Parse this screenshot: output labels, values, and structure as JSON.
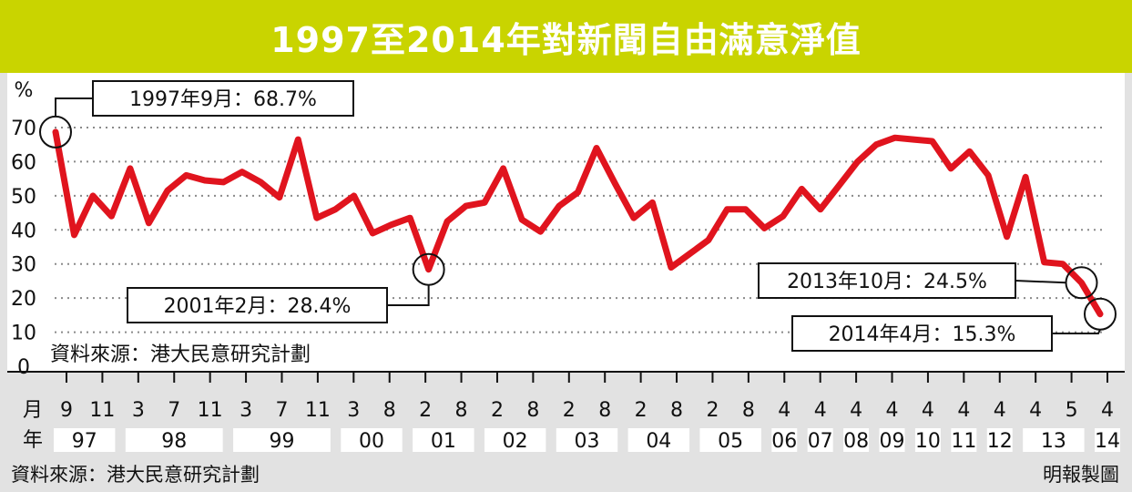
{
  "title": "1997至2014年對新聞自由滿意淨值",
  "source": "資料來源：港大民意研究計劃",
  "credit": "明報製圖",
  "colors": {
    "accent": "#c9d400",
    "line": "#e0141e"
  },
  "chart_data": {
    "type": "line",
    "title": "1997至2014年對新聞自由滿意淨值",
    "ylabel": "%",
    "xlabel": "",
    "ylim": [
      0,
      70
    ],
    "yticks": [
      "0",
      "10",
      "20",
      "30",
      "40",
      "50",
      "60",
      "70"
    ],
    "grid": "horizontal dotted",
    "month_row_label": "月",
    "year_row_label": "年",
    "month_ticks": [
      "9",
      "11",
      "3",
      "7",
      "11",
      "3",
      "7",
      "11",
      "3",
      "8",
      "2",
      "8",
      "2",
      "8",
      "2",
      "8",
      "2",
      "8",
      "2",
      "8",
      "4",
      "4",
      "4",
      "4",
      "4",
      "4",
      "4",
      "4",
      "5",
      "4"
    ],
    "year_groups": [
      "97",
      "98",
      "99",
      "00",
      "01",
      "02",
      "03",
      "04",
      "05",
      "06",
      "07",
      "08",
      "09",
      "10",
      "11",
      "12",
      "13",
      "14"
    ],
    "series": [
      {
        "values": [
          68.7,
          38.5,
          50,
          44,
          58,
          42,
          51.5,
          56,
          54.5,
          54,
          57,
          54,
          49.5,
          66.5,
          43.5,
          46,
          50,
          39,
          41.5,
          43.5,
          28.4,
          42.5,
          47,
          48,
          58,
          43,
          39.5,
          47,
          51,
          64,
          53.5,
          43.5,
          48,
          29,
          33,
          37,
          46,
          46,
          40.5,
          44,
          52,
          46,
          53,
          60,
          65,
          67,
          66.5,
          66,
          58,
          63,
          56,
          38,
          55.5,
          30.5,
          30,
          24.5,
          15.3
        ]
      }
    ],
    "annotations": [
      {
        "label": "1997年9月：68.7%",
        "date": "1997-09",
        "value": 68.7
      },
      {
        "label": "2001年2月：28.4%",
        "date": "2001-02",
        "value": 28.4
      },
      {
        "label": "2013年10月：24.5%",
        "date": "2013-10",
        "value": 24.5
      },
      {
        "label": "2014年4月：15.3%",
        "date": "2014-04",
        "value": 15.3
      }
    ]
  }
}
